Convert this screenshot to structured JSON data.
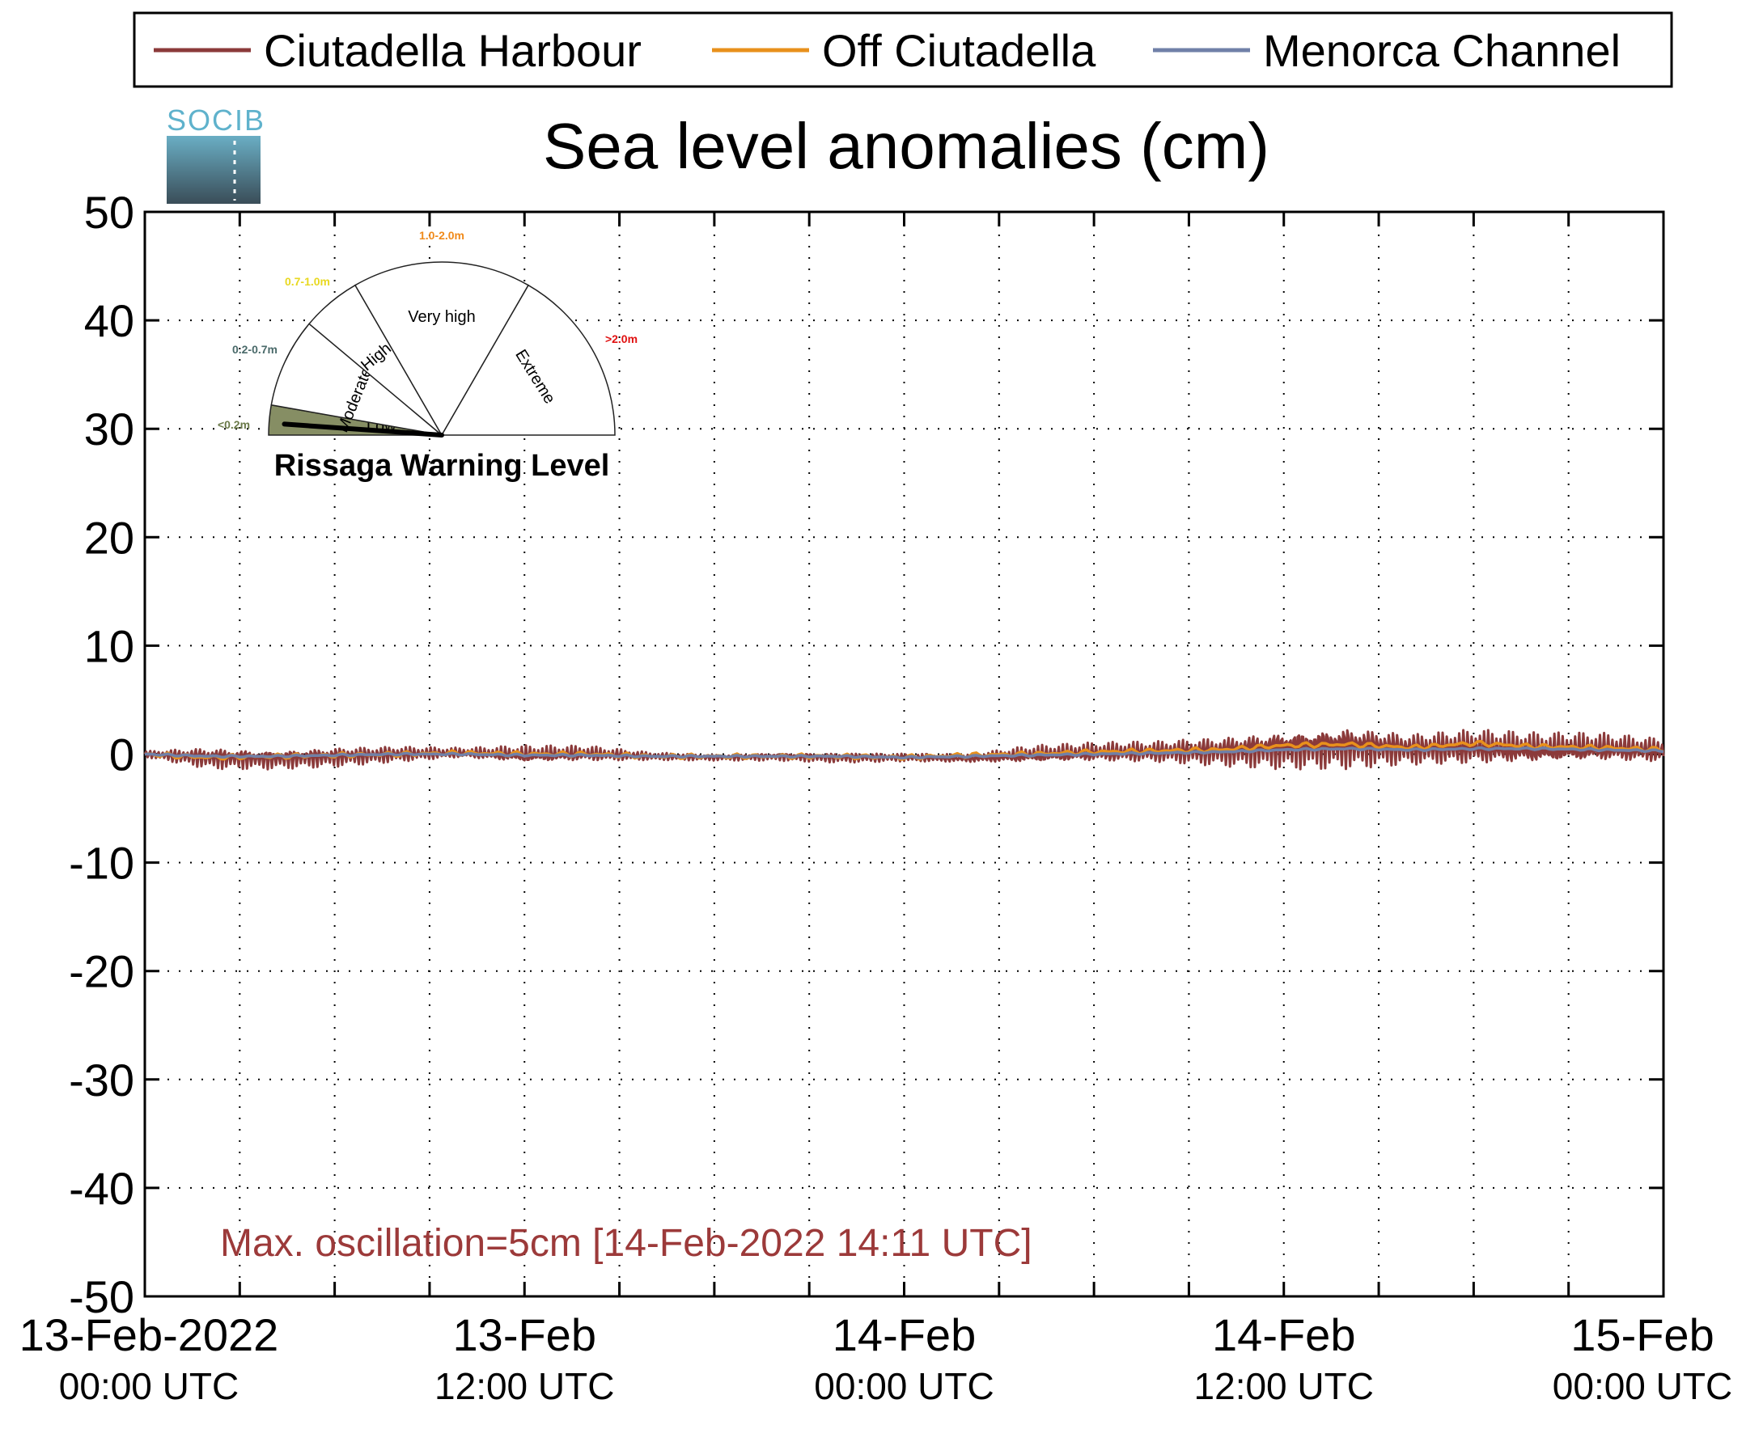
{
  "logo": {
    "text": "SOCIB"
  },
  "legend": {
    "placement": "top",
    "items": [
      {
        "label": "Ciutadella Harbour",
        "color": "#8b3a3a"
      },
      {
        "label": "Off Ciutadella",
        "color": "#e8901c"
      },
      {
        "label": "Menorca Channel",
        "color": "#7080a8"
      }
    ]
  },
  "gauge": {
    "title": "Rissaga Warning Level",
    "current_level": "Low",
    "sectors": [
      {
        "name": "Low",
        "range": "<0.2m",
        "range_color": "#6b7a4a",
        "fill": "#868e64",
        "active": true
      },
      {
        "name": "Moderate",
        "range": "0.2-0.7m",
        "range_color": "#4a6a6a",
        "fill": "#ffffff",
        "active": false
      },
      {
        "name": "High",
        "range": "0.7-1.0m",
        "range_color": "#e8d820",
        "fill": "#ffffff",
        "active": false
      },
      {
        "name": "Very high",
        "range": "1.0-2.0m",
        "range_color": "#f08a1a",
        "fill": "#ffffff",
        "active": false
      },
      {
        "name": "Extreme",
        "range": ">2.0m",
        "range_color": "#e01010",
        "fill": "#ffffff",
        "active": false
      }
    ]
  },
  "annotation": {
    "text": "Max. oscillation=5cm [14-Feb-2022 14:11 UTC]",
    "color": "#9c3a3a"
  },
  "chart_data": {
    "type": "line",
    "title": "Sea level anomalies (cm)",
    "xlabel": "",
    "ylabel": "",
    "ylim": [
      -50,
      50
    ],
    "xlim_hours": [
      0,
      48
    ],
    "grid": true,
    "y_ticks": [
      "-50",
      "-40",
      "-30",
      "-20",
      "-10",
      "0",
      "10",
      "20",
      "30",
      "40",
      "50"
    ],
    "x_ticks": [
      {
        "hour": 0,
        "line1": "13-Feb-2022",
        "line2": "00:00 UTC"
      },
      {
        "hour": 12,
        "line1": "13-Feb",
        "line2": "12:00 UTC"
      },
      {
        "hour": 24,
        "line1": "14-Feb",
        "line2": "00:00 UTC"
      },
      {
        "hour": 36,
        "line1": "14-Feb",
        "line2": "12:00 UTC"
      },
      {
        "hour": 48,
        "line1": "15-Feb",
        "line2": "00:00 UTC"
      }
    ],
    "x_hours": [
      0,
      2,
      4,
      6,
      8,
      10,
      12,
      14,
      16,
      18,
      20,
      22,
      24,
      26,
      28,
      30,
      32,
      34,
      36,
      38,
      40,
      42,
      44,
      46,
      48
    ],
    "series": [
      {
        "name": "Ciutadella Harbour",
        "color": "#8b3a3a",
        "envelope_center": [
          0.0,
          -0.3,
          -0.4,
          -0.2,
          0.0,
          0.1,
          -0.1,
          0.0,
          -0.2,
          -0.3,
          -0.2,
          -0.3,
          -0.3,
          -0.4,
          -0.1,
          0.1,
          0.2,
          0.3,
          0.6,
          0.8,
          0.5,
          0.6,
          0.4,
          0.5,
          0.3
        ],
        "envelope_amplitude": [
          0.3,
          1.1,
          1.0,
          1.0,
          0.8,
          0.5,
          0.9,
          0.8,
          0.4,
          0.3,
          0.4,
          0.5,
          0.4,
          0.4,
          0.9,
          1.0,
          1.1,
          1.5,
          2.0,
          2.2,
          1.6,
          1.8,
          1.6,
          1.5,
          1.2
        ]
      },
      {
        "name": "Off Ciutadella",
        "color": "#e8901c",
        "values": [
          0.0,
          -0.3,
          -0.2,
          -0.1,
          0.0,
          0.1,
          0.0,
          0.0,
          -0.2,
          -0.2,
          -0.2,
          -0.2,
          -0.3,
          -0.1,
          0.0,
          0.2,
          0.3,
          0.4,
          0.8,
          0.9,
          0.6,
          1.0,
          0.7,
          0.6,
          0.4
        ]
      },
      {
        "name": "Menorca Channel",
        "color": "#7080a8",
        "values": [
          0.0,
          -0.2,
          -0.2,
          -0.1,
          0.0,
          0.0,
          -0.1,
          -0.1,
          -0.2,
          -0.2,
          -0.2,
          -0.2,
          -0.3,
          -0.2,
          -0.1,
          0.0,
          0.1,
          0.2,
          0.4,
          0.5,
          0.4,
          0.5,
          0.5,
          0.4,
          0.3
        ]
      }
    ]
  }
}
